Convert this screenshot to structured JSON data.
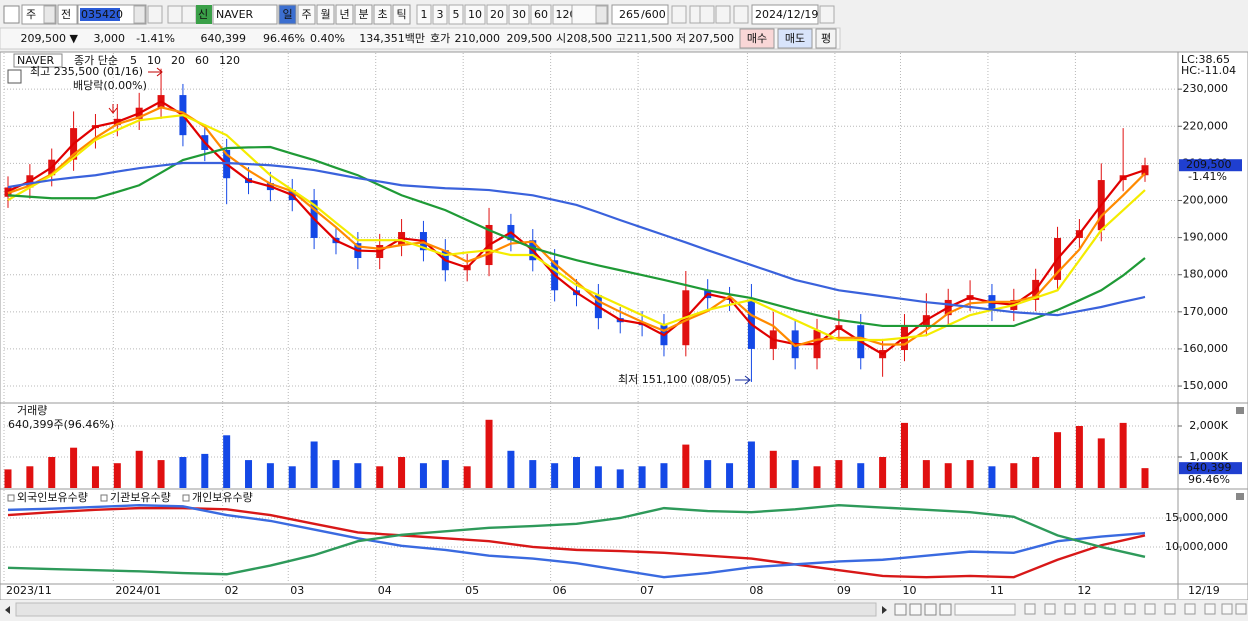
{
  "toolbar": {
    "market": "주",
    "scope": "전",
    "code": "035420",
    "name_badge": "신",
    "name": "NAVER",
    "periods": [
      "일",
      "주",
      "월",
      "년",
      "분",
      "초",
      "틱"
    ],
    "intervals": [
      "1",
      "3",
      "5",
      "10",
      "20",
      "30",
      "60",
      "120"
    ],
    "count": "265",
    "max_count": "/600",
    "date": "2024/12/19"
  },
  "quote": {
    "price": "209,500 ▼",
    "change": "3,000",
    "change_rate": "-1.41%",
    "volume": "640,399",
    "volume_ratio": "96.46%",
    "turnover": "0.40%",
    "amount": "134,351백만",
    "bid_ask_label": "호가",
    "ask": "210,000",
    "bid": "209,500",
    "open_label": "시",
    "open": "208,500",
    "high_label": "고",
    "high": "211,500",
    "low_label": "저",
    "low": "207,500",
    "buy": "매수",
    "sell": "매도",
    "avg": "평"
  },
  "chart_data": [
    {
      "type": "candlestick",
      "title": "NAVER",
      "ma_label": "종가 단순",
      "categories": [
        "2023/11",
        null,
        null,
        null,
        null,
        "2024/01",
        null,
        null,
        null,
        null,
        "02",
        null,
        null,
        "03",
        null,
        null,
        null,
        "04",
        null,
        null,
        null,
        "05",
        null,
        null,
        null,
        "06",
        null,
        null,
        null,
        "07",
        null,
        null,
        null,
        null,
        "08",
        null,
        null,
        null,
        "09",
        null,
        null,
        "10",
        null,
        null,
        null,
        "11",
        null,
        null,
        null,
        "12",
        null,
        null,
        null
      ],
      "open": [
        201000,
        203500,
        206800,
        211000,
        219500,
        220300,
        222000,
        225000,
        228400,
        217600,
        213600,
        206000,
        204700,
        202800,
        200100,
        189900,
        188500,
        184500,
        188000,
        191500,
        186600,
        181200,
        182600,
        193400,
        189300,
        183900,
        175800,
        174500,
        168300,
        167200,
        166400,
        161000,
        175800,
        173700,
        173200,
        160000,
        165000,
        157500,
        165100,
        166400,
        157500,
        159700,
        166400,
        169100,
        173200,
        174500,
        170500,
        173200,
        178600,
        189900,
        192000,
        205500,
        206800
      ],
      "high": [
        206500,
        209800,
        214000,
        224000,
        223300,
        226000,
        229000,
        235500,
        231400,
        220600,
        216600,
        209000,
        207700,
        205800,
        203100,
        192900,
        191500,
        191000,
        195000,
        194500,
        189600,
        185600,
        198000,
        196400,
        192300,
        186900,
        178800,
        177500,
        171300,
        170200,
        169400,
        181000,
        178800,
        176700,
        177500,
        170000,
        168000,
        168100,
        170400,
        169400,
        162700,
        169400,
        175000,
        176200,
        178500,
        177500,
        176200,
        181600,
        192900,
        195000,
        210000,
        219500,
        211500
      ],
      "low": [
        198000,
        200500,
        203800,
        208000,
        214000,
        217300,
        219000,
        222000,
        214600,
        210600,
        199000,
        201700,
        199800,
        197100,
        186900,
        185500,
        181500,
        181500,
        185000,
        183600,
        178200,
        178200,
        179600,
        186300,
        180900,
        172800,
        171500,
        165300,
        164200,
        163400,
        158000,
        158000,
        170700,
        170200,
        151100,
        157000,
        154500,
        154500,
        162100,
        154500,
        152500,
        156700,
        163400,
        166100,
        170200,
        167500,
        167500,
        170200,
        175600,
        186900,
        189000,
        202500,
        205000
      ],
      "close": [
        203500,
        206800,
        211000,
        219500,
        220300,
        222000,
        225000,
        228400,
        217600,
        213600,
        206000,
        204700,
        202800,
        200100,
        189900,
        188500,
        184500,
        188000,
        191500,
        186600,
        181200,
        182600,
        193400,
        189300,
        183900,
        175800,
        174500,
        168300,
        167200,
        166400,
        161000,
        175800,
        173700,
        173200,
        160000,
        165000,
        157500,
        165100,
        166400,
        157500,
        159700,
        166400,
        169100,
        173200,
        174500,
        170500,
        173200,
        178600,
        189900,
        192000,
        205500,
        206800,
        209500
      ],
      "up_color": "#e01010",
      "down_color": "#1448e6",
      "series": [
        {
          "name": "5",
          "color": "#e00000",
          "values": [
            202500,
            205200,
            208900,
            215300,
            219900,
            221200,
            223500,
            226700,
            223000,
            215600,
            209800,
            205400,
            203800,
            201500,
            195000,
            189200,
            186500,
            186300,
            189800,
            189100,
            183900,
            181900,
            188000,
            191400,
            186600,
            179900,
            175200,
            171400,
            167800,
            166800,
            163700,
            168400,
            174800,
            173500,
            166600,
            162500,
            161300,
            161300,
            165800,
            162000,
            158600,
            163100,
            167800,
            171200,
            173900,
            172500,
            171900,
            175900,
            184300,
            191000,
            198800,
            206200,
            208200
          ]
        },
        {
          "name": "10",
          "color": "#ff8a00",
          "values": [
            202000,
            204000,
            207100,
            212400,
            216900,
            220600,
            222400,
            225100,
            223700,
            219900,
            212400,
            208100,
            204500,
            202500,
            197600,
            192800,
            187600,
            187000,
            188000,
            188700,
            186400,
            183500,
            185700,
            188400,
            188900,
            183000,
            178100,
            172900,
            170000,
            167300,
            164900,
            167700,
            170200,
            174200,
            169100,
            166200,
            160800,
            162500,
            163000,
            163000,
            161200,
            161200,
            165100,
            169600,
            172300,
            172700,
            172700,
            174100,
            180600,
            186800,
            195800,
            201400,
            207300
          ]
        },
        {
          "name": "20",
          "color": "#f4ec00",
          "values": [
            200100,
            203500,
            206800,
            211500,
            216300,
            219000,
            221600,
            222300,
            223000,
            220300,
            217600,
            212200,
            206800,
            202800,
            198800,
            194000,
            189300,
            189300,
            189300,
            187300,
            185300,
            186000,
            186600,
            185300,
            185300,
            181300,
            177200,
            174500,
            171800,
            169100,
            166400,
            168500,
            170500,
            171900,
            173200,
            170500,
            167800,
            165100,
            162400,
            162400,
            162400,
            163000,
            163700,
            166400,
            169100,
            170500,
            171800,
            173800,
            175800,
            183900,
            192000,
            197400,
            202800
          ]
        },
        {
          "name": "60",
          "color": "#1f9a36",
          "values": [
            201400,
            201000,
            200600,
            200600,
            200600,
            202300,
            204100,
            207500,
            210900,
            212500,
            214100,
            214300,
            214400,
            212600,
            210900,
            208800,
            206800,
            204100,
            201400,
            199400,
            197400,
            194700,
            192000,
            189600,
            187200,
            185500,
            183900,
            182500,
            181200,
            179900,
            178600,
            177200,
            175800,
            174700,
            173700,
            172100,
            170500,
            169100,
            167800,
            167000,
            166200,
            166200,
            166200,
            166200,
            166200,
            166200,
            166200,
            168300,
            170500,
            173100,
            175800,
            179800,
            184500
          ]
        },
        {
          "name": "120",
          "color": "#3a62dc",
          "values": [
            203600,
            204600,
            205500,
            206200,
            206800,
            207800,
            208700,
            209400,
            210100,
            210100,
            210100,
            209800,
            209500,
            208900,
            208200,
            207100,
            206000,
            205100,
            204100,
            203700,
            203300,
            203100,
            202800,
            202100,
            201400,
            200100,
            198800,
            196800,
            194700,
            192700,
            190700,
            188700,
            186600,
            184600,
            182600,
            180600,
            178600,
            177200,
            175800,
            175000,
            174200,
            173400,
            172600,
            172000,
            171300,
            170600,
            169900,
            169500,
            169100,
            170200,
            171300,
            172700,
            174000
          ]
        }
      ],
      "ylim": [
        145700,
        239200
      ],
      "yticks": [
        {
          "value": 150000,
          "label": "150,000"
        },
        {
          "value": 160000,
          "label": "160,000"
        },
        {
          "value": 170000,
          "label": "170,000"
        },
        {
          "value": 180000,
          "label": "180,000"
        },
        {
          "value": 190000,
          "label": "190,000"
        },
        {
          "value": 200000,
          "label": "200,000"
        },
        {
          "value": 210000,
          "label": "210,000"
        },
        {
          "value": 220000,
          "label": "220,000"
        },
        {
          "value": 230000,
          "label": "230,000"
        }
      ],
      "grid": true,
      "annotations": {
        "high": "최고 235,500 (01/16)",
        "dividend": "배당락(0.00%)",
        "low": "최저 151,100 (08/05)",
        "lc": "LC:38.65",
        "hc": "HC:-11.04",
        "last_price": "209,500",
        "last_change": "-1.41%"
      },
      "last_date": "12/19"
    },
    {
      "type": "bar",
      "title": "거래량",
      "subtitle": "640,399주(96.46%)",
      "values": [
        600000,
        700000,
        1000000,
        1300000,
        700000,
        800000,
        1200000,
        900000,
        1000000,
        1100000,
        1700000,
        900000,
        800000,
        700000,
        1500000,
        900000,
        800000,
        700000,
        1000000,
        800000,
        900000,
        700000,
        2200000,
        1200000,
        900000,
        800000,
        1000000,
        700000,
        600000,
        700000,
        800000,
        1400000,
        900000,
        800000,
        1500000,
        1200000,
        900000,
        700000,
        900000,
        800000,
        1000000,
        2100000,
        900000,
        800000,
        900000,
        700000,
        800000,
        1000000,
        1800000,
        2000000,
        1600000,
        2100000,
        640399
      ],
      "ylim": [
        0,
        2677000
      ],
      "yticks": [
        {
          "value": 1000000,
          "label": "1,000K"
        },
        {
          "value": 2000000,
          "label": "2,000K"
        }
      ],
      "grid": true,
      "last_label": "640,399",
      "last_ratio": "96.46%"
    },
    {
      "type": "line",
      "series": [
        {
          "name": "외국인보유수량",
          "color": "#d81818",
          "values": [
            15500000,
            16000000,
            16400000,
            16700000,
            16700000,
            16500000,
            15500000,
            14000000,
            12500000,
            12000000,
            11500000,
            11000000,
            10000000,
            9500000,
            9300000,
            9000000,
            8500000,
            8000000,
            7000000,
            6000000,
            5000000,
            4800000,
            5000000,
            4800000,
            7800000,
            10300000,
            12000000
          ]
        },
        {
          "name": "기관보유수량",
          "color": "#3a6ae0",
          "values": [
            16400000,
            16600000,
            16900000,
            17200000,
            17000000,
            15500000,
            14500000,
            13000000,
            11500000,
            10200000,
            9500000,
            8500000,
            8000000,
            7200000,
            6000000,
            4800000,
            5500000,
            6500000,
            7000000,
            7500000,
            7800000,
            8500000,
            9200000,
            9000000,
            11000000,
            11800000,
            12400000
          ]
        },
        {
          "name": "개인보유수량",
          "color": "#2e9a5a",
          "values": [
            6400000,
            6200000,
            6000000,
            5800000,
            5500000,
            5300000,
            6800000,
            8600000,
            11000000,
            12100000,
            12700000,
            13300000,
            13600000,
            14000000,
            15000000,
            16700000,
            16200000,
            16000000,
            16500000,
            17200000,
            16800000,
            16400000,
            16000000,
            15200000,
            12000000,
            10000000,
            8300000
          ]
        }
      ],
      "ylim": [
        3790000,
        19480000
      ],
      "yticks": [
        {
          "value": 10000000,
          "label": "10,000,000"
        },
        {
          "value": 15000000,
          "label": "15,000,000"
        }
      ],
      "grid": true
    }
  ]
}
